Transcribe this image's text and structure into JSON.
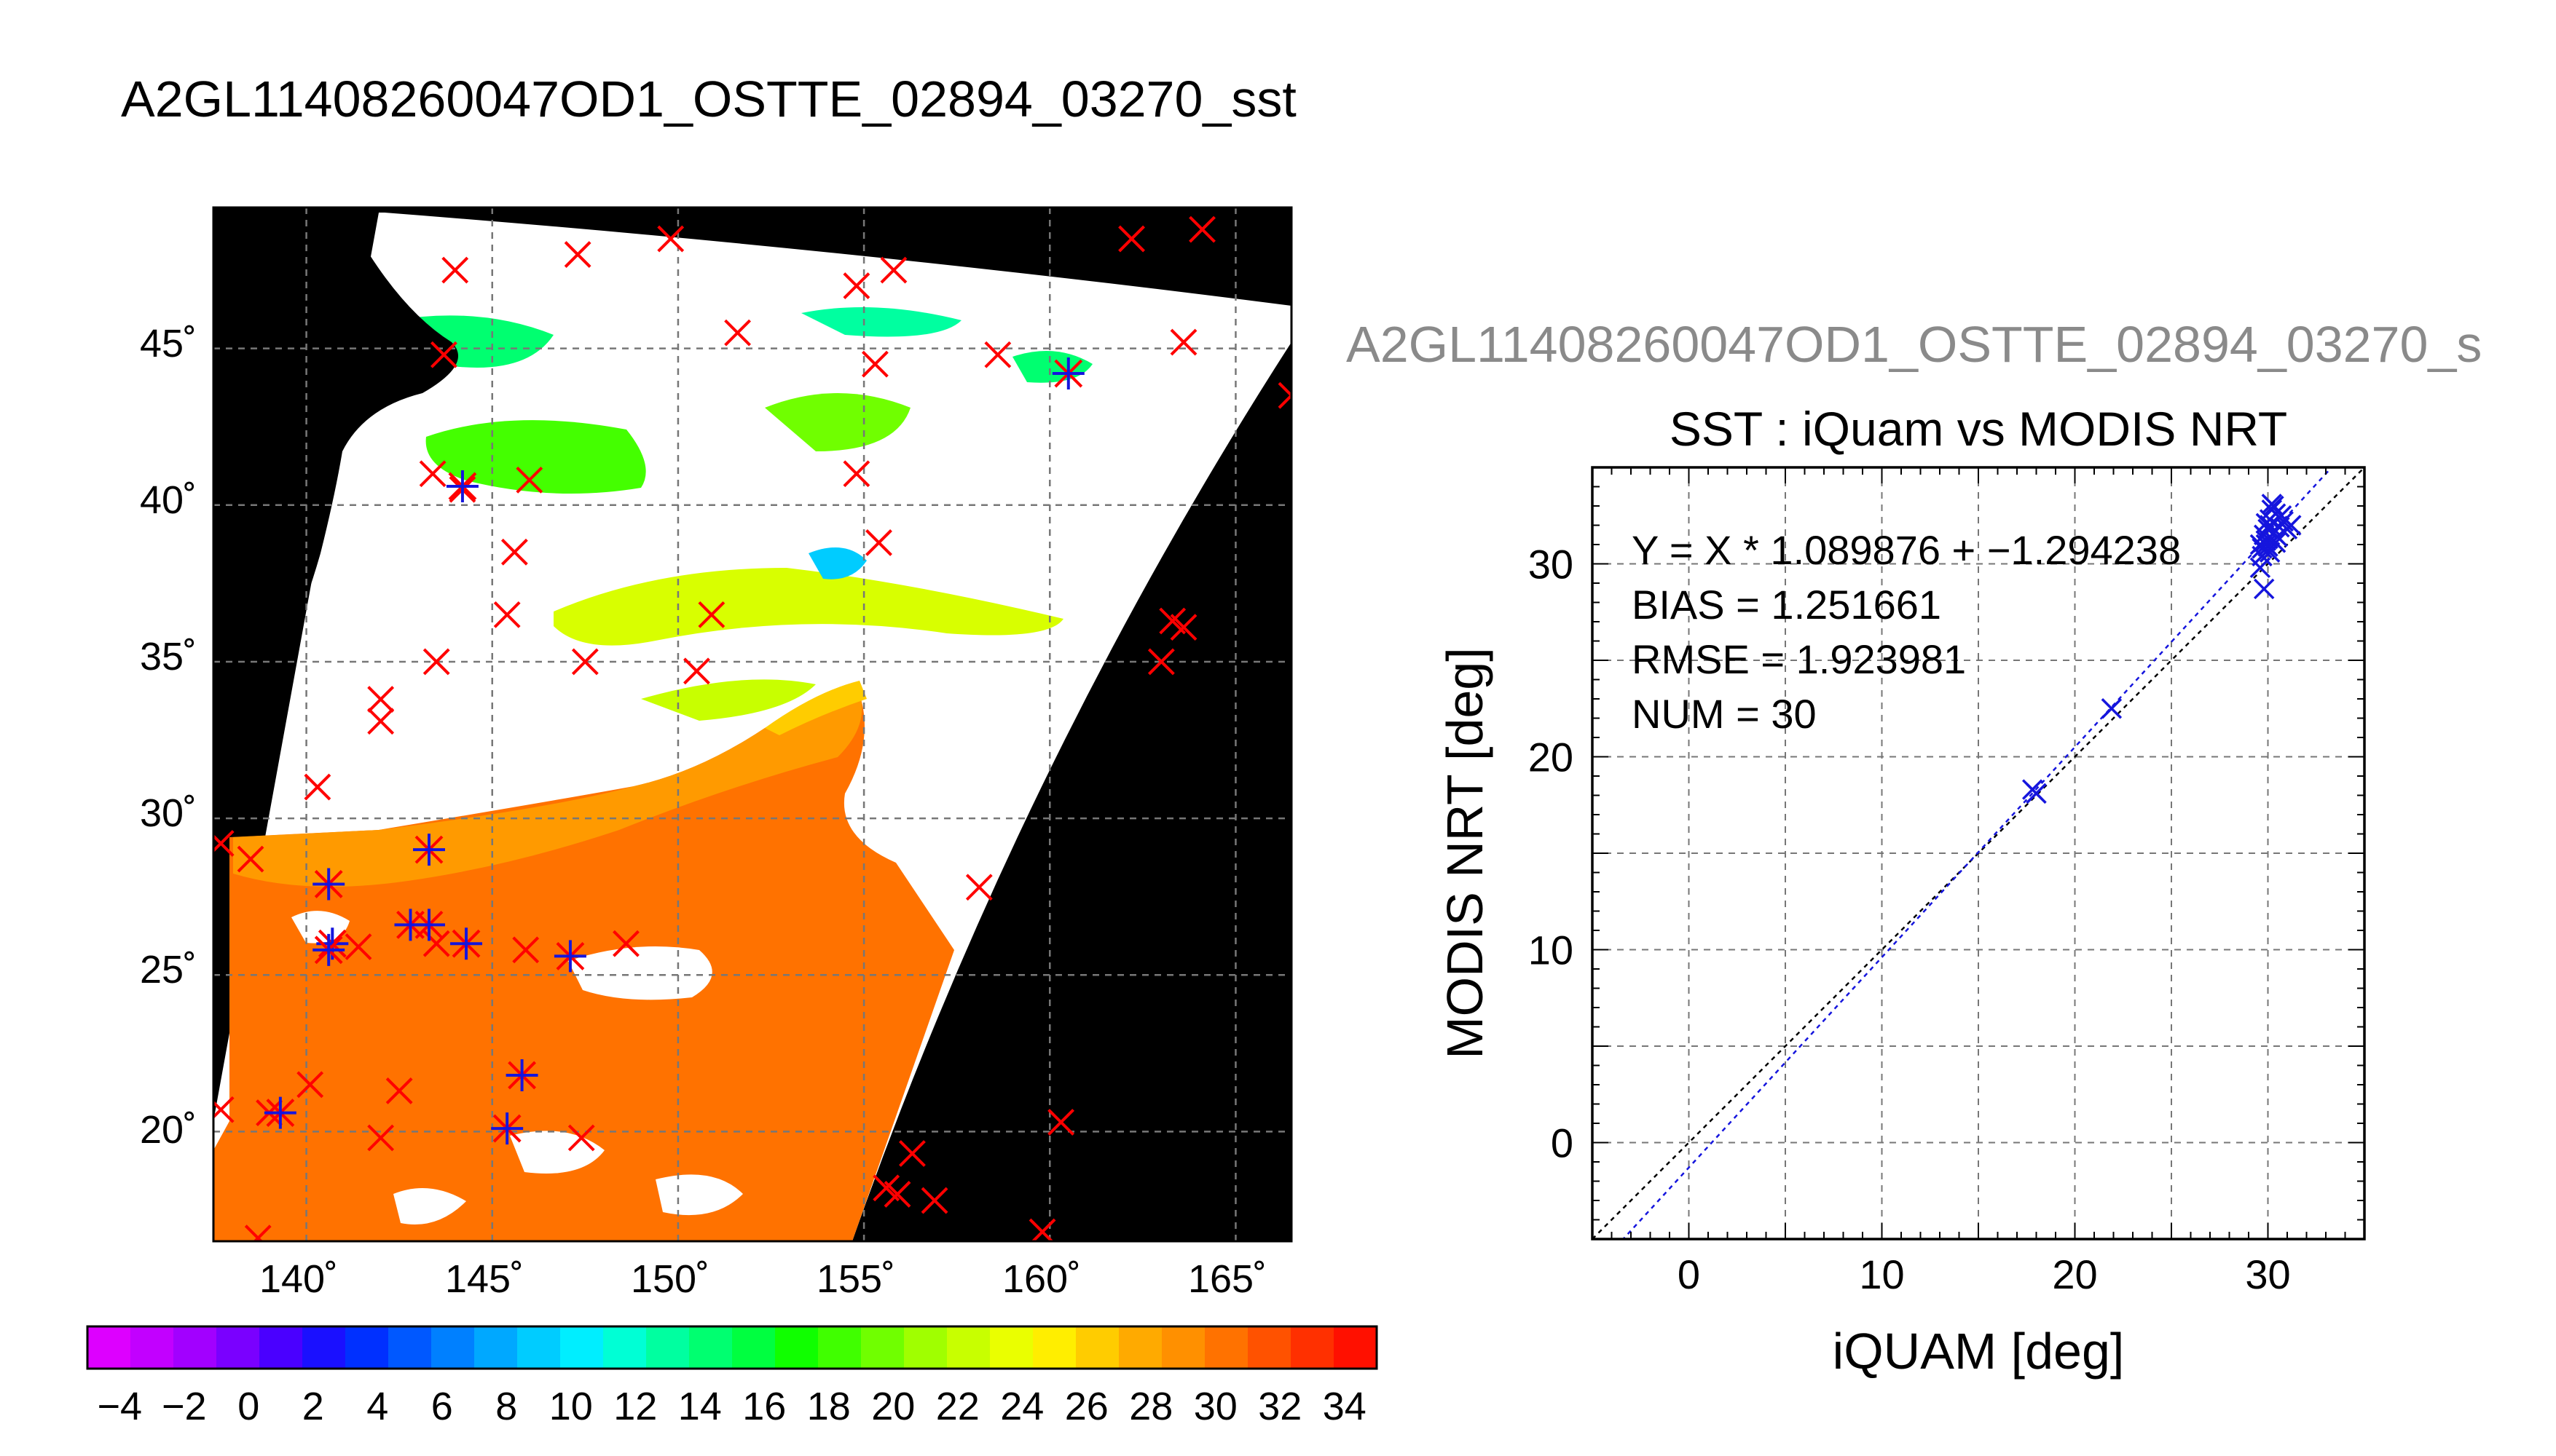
{
  "main_title": "A2GL11408260047OD1_OSTTE_02894_03270_sst",
  "colors": {
    "background": "#ffffff",
    "land": "#000000",
    "grid": "#777777",
    "land_grid": "#aaaaaa",
    "red_marker": "#ff0000",
    "blue_marker": "#1515dd",
    "fit_line": "#1515dd",
    "identity_line": "#000000",
    "subtitle": "#8a8a8a"
  },
  "map": {
    "lon_ticks": [
      "140˚",
      "145˚",
      "150˚",
      "155˚",
      "160˚",
      "165˚"
    ],
    "lat_ticks": [
      "20˚",
      "25˚",
      "30˚",
      "35˚",
      "40˚",
      "45˚"
    ],
    "lon_values": [
      140,
      145,
      150,
      155,
      160,
      165
    ],
    "lat_values": [
      20,
      25,
      30,
      35,
      40,
      45
    ]
  },
  "colorbar": {
    "labels": [
      "−4",
      "−2",
      "0",
      "2",
      "4",
      "6",
      "8",
      "10",
      "12",
      "14",
      "16",
      "18",
      "20",
      "22",
      "24",
      "26",
      "28",
      "30",
      "32",
      "34"
    ],
    "range": [
      -5,
      35
    ],
    "segments": [
      "#dd00ff",
      "#c200ff",
      "#a200ff",
      "#7a00ff",
      "#4a00ff",
      "#1a10ff",
      "#0030ff",
      "#0058ff",
      "#0080ff",
      "#00a8ff",
      "#00ccff",
      "#00eeff",
      "#00ffd5",
      "#00ffa0",
      "#00ff70",
      "#00ff40",
      "#10ff00",
      "#40ff00",
      "#70ff00",
      "#a0ff00",
      "#c8ff00",
      "#eaff00",
      "#ffee00",
      "#ffcc00",
      "#ffaa00",
      "#ff9000",
      "#ff7200",
      "#ff5200",
      "#ff3000",
      "#ff1000"
    ]
  },
  "chart_data": [
    {
      "type": "map",
      "title": "A2GL11408260047OD1_OSTTE_02894_03270_sst",
      "projection": "lon-lat",
      "lon_range": [
        137.5,
        166.5
      ],
      "lat_range": [
        16.5,
        49.5
      ],
      "colorbar_range": [
        -5,
        35
      ],
      "colorbar_ticks": [
        -4,
        -2,
        0,
        2,
        4,
        6,
        8,
        10,
        12,
        14,
        16,
        18,
        20,
        22,
        24,
        26,
        28,
        30,
        32,
        34
      ],
      "grid": true,
      "markers": {
        "red_x": [
          [
            144,
            47.5
          ],
          [
            147.3,
            48
          ],
          [
            149.8,
            48.5
          ],
          [
            155.8,
            47.5
          ],
          [
            154.8,
            47
          ],
          [
            162.2,
            48.5
          ],
          [
            164.1,
            48.8
          ],
          [
            143.7,
            44.8
          ],
          [
            151.6,
            45.5
          ],
          [
            155.3,
            44.5
          ],
          [
            158.6,
            44.8
          ],
          [
            163.6,
            45.2
          ],
          [
            166.5,
            43.5
          ],
          [
            143.4,
            41
          ],
          [
            146,
            40.8
          ],
          [
            154.8,
            41
          ],
          [
            144.2,
            40.5
          ],
          [
            145.6,
            38.5
          ],
          [
            155.4,
            38.8
          ],
          [
            145.4,
            36.5
          ],
          [
            150.9,
            36.5
          ],
          [
            147.5,
            35
          ],
          [
            143.5,
            35
          ],
          [
            150.5,
            34.7
          ],
          [
            142,
            33.8
          ],
          [
            142,
            33.1
          ],
          [
            163.3,
            36.3
          ],
          [
            163.6,
            36.1
          ],
          [
            163,
            35
          ],
          [
            140.3,
            31
          ],
          [
            137.7,
            29.2
          ],
          [
            138.5,
            28.7
          ],
          [
            158.1,
            27.8
          ],
          [
            145.9,
            25.8
          ],
          [
            148.6,
            26
          ],
          [
            143.5,
            26
          ],
          [
            141.4,
            25.9
          ],
          [
            140.1,
            21.5
          ],
          [
            142.5,
            21.3
          ],
          [
            137.7,
            20.7
          ],
          [
            139,
            20.6
          ],
          [
            142,
            19.8
          ],
          [
            147.4,
            19.8
          ],
          [
            160.3,
            20.3
          ],
          [
            156.3,
            19.3
          ],
          [
            155.6,
            18.2
          ],
          [
            155.9,
            18
          ],
          [
            156.9,
            17.8
          ],
          [
            159.8,
            16.8
          ],
          [
            138.7,
            16.6
          ]
        ],
        "blue_star": [
          [
            140.6,
            27.9
          ],
          [
            140.7,
            26
          ],
          [
            140.6,
            25.8
          ],
          [
            142.8,
            26.6
          ],
          [
            143.3,
            26.6
          ],
          [
            143.3,
            29
          ],
          [
            144.3,
            26
          ],
          [
            147.1,
            25.6
          ],
          [
            139.3,
            20.6
          ],
          [
            145.8,
            21.8
          ],
          [
            145.4,
            20.1
          ],
          [
            144.2,
            40.6
          ],
          [
            160.5,
            44.2
          ]
        ]
      }
    },
    {
      "type": "scatter",
      "title": "SST : iQuam vs MODIS NRT",
      "subtitle": "A2GL11408260047OD1_OSTTE_02894_03270_s",
      "xlabel": "iQUAM [deg]",
      "ylabel": "MODIS NRT [deg]",
      "xlim": [
        -5,
        35
      ],
      "ylim": [
        -5,
        35
      ],
      "xticks": [
        0,
        10,
        20,
        30
      ],
      "yticks": [
        0,
        10,
        20,
        30
      ],
      "grid": true,
      "series": [
        {
          "x": [
            17.8,
            18.0,
            21.9,
            29.6,
            29.7,
            29.9,
            29.8,
            29.6,
            29.7,
            30.0,
            30.0,
            30.1,
            30.2,
            30.3,
            30.4,
            30.3,
            30.1,
            30.5,
            30.6,
            30.8,
            31.0,
            30.2,
            29.9,
            29.8,
            30.0,
            30.4,
            30.7,
            29.9,
            30.1,
            31.2
          ],
          "y": [
            18.3,
            18.1,
            22.5,
            29.8,
            30.4,
            31.0,
            31.5,
            31.0,
            30.8,
            31.3,
            31.8,
            32.3,
            32.8,
            33.0,
            32.6,
            31.6,
            32.0,
            31.4,
            31.9,
            32.2,
            31.8,
            33.1,
            32.1,
            28.7,
            30.9,
            31.1,
            32.5,
            31.2,
            30.6,
            32.0
          ]
        }
      ],
      "fit": {
        "slope": 1.089876,
        "intercept": -1.294238
      },
      "annotations": [
        "Y = X * 1.089876 + −1.294238",
        "BIAS = 1.251661",
        "RMSE = 1.923981",
        "NUM = 30"
      ]
    }
  ]
}
